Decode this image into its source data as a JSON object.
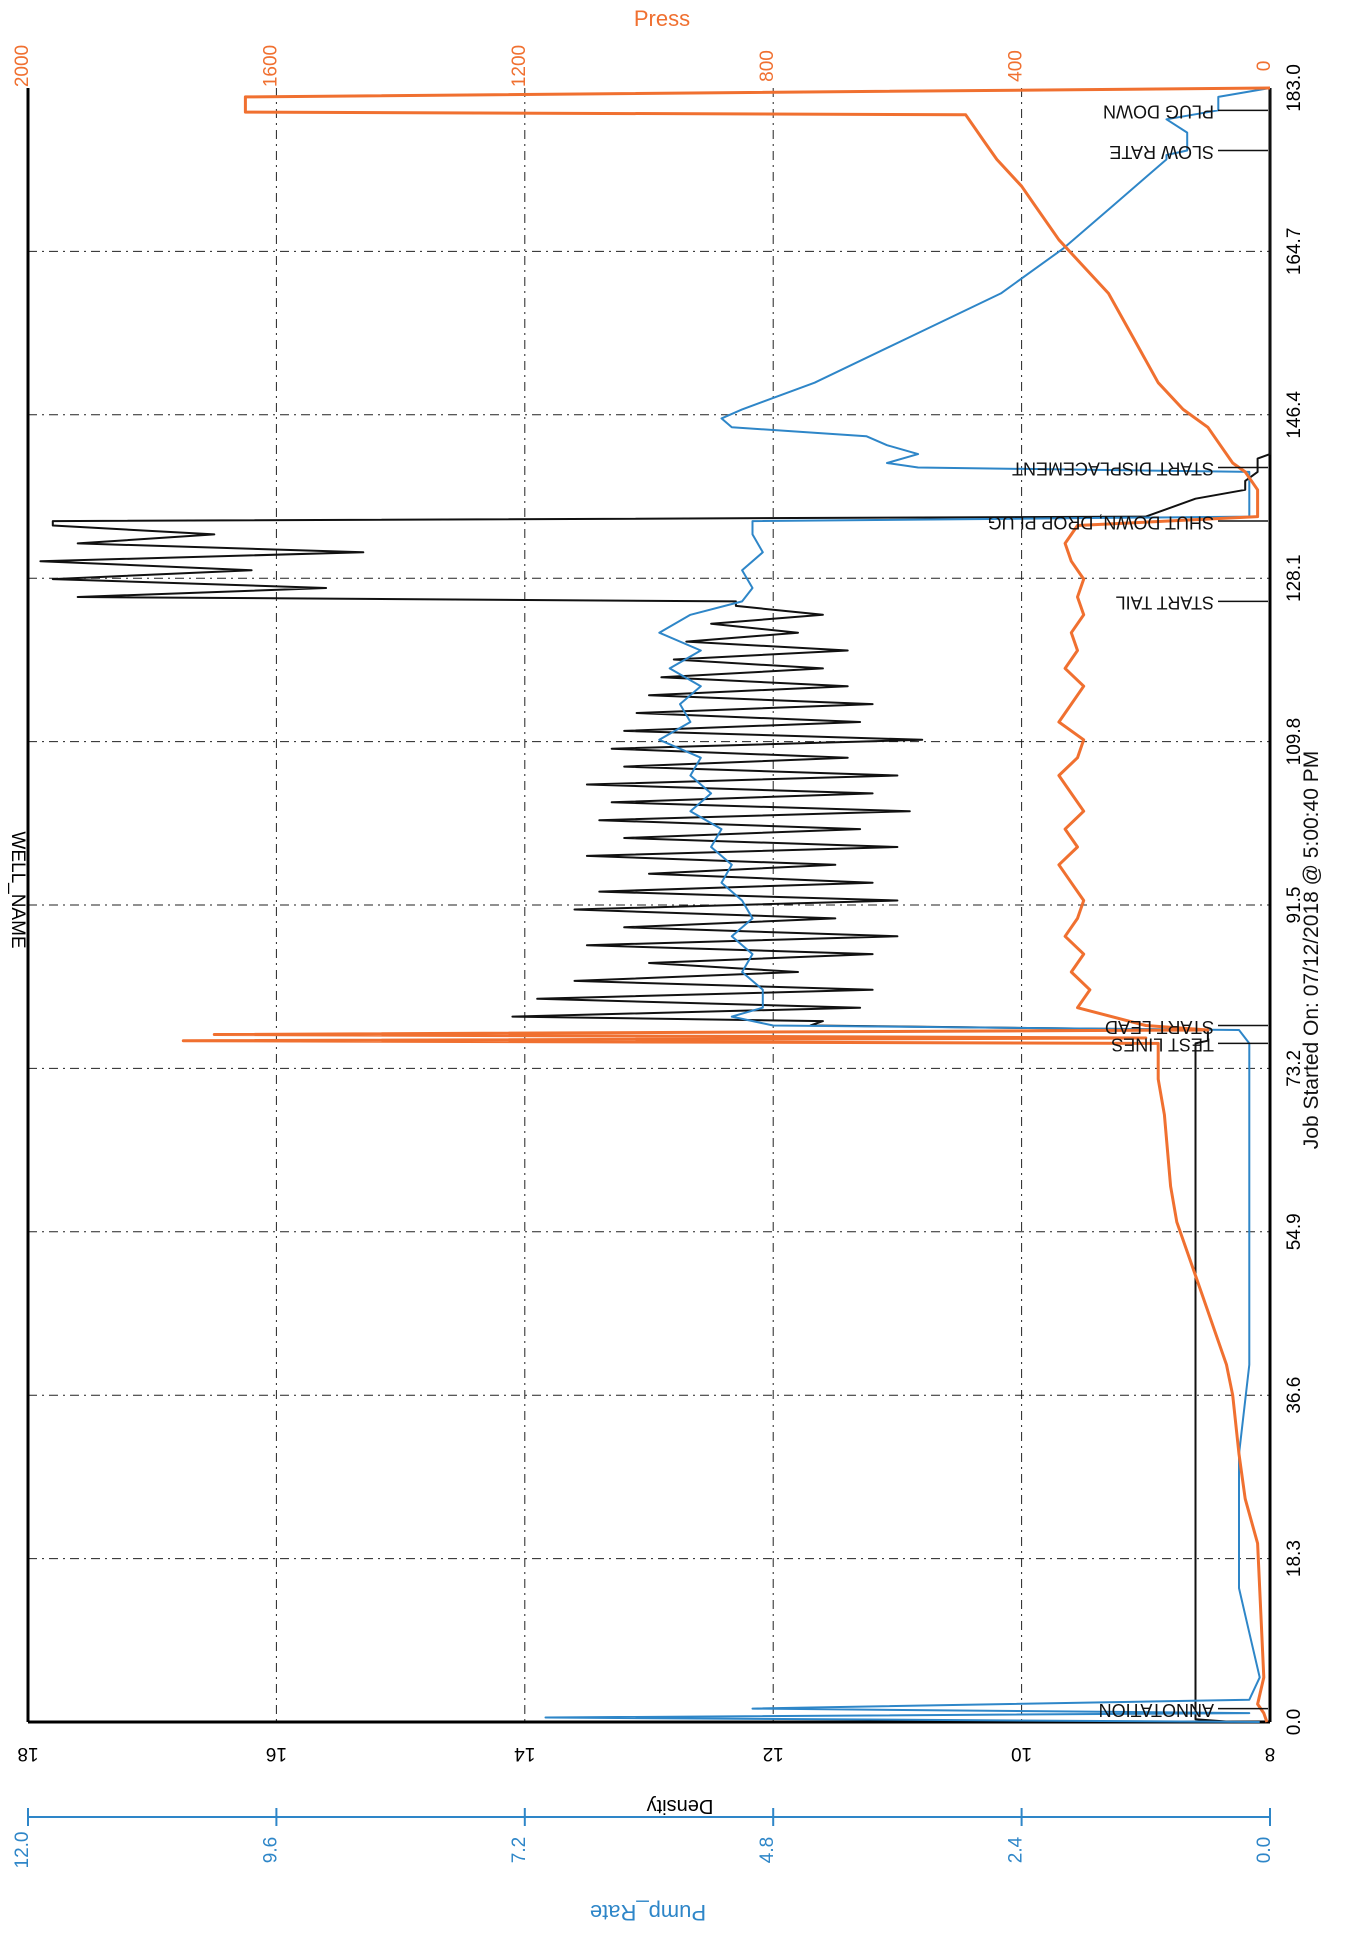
{
  "header": {
    "well_name": "WELL_NAME"
  },
  "chart_data": {
    "type": "line",
    "orientation": "rotated-90-clockwise",
    "footer": "Job Started On: 07/12/2018 @ 5:00:40 PM",
    "x_axis": {
      "ticks": [
        "0.0",
        "18.3",
        "36.6",
        "54.9",
        "73.2",
        "91.5",
        "109.8",
        "128.1",
        "146.4",
        "164.7",
        "183.0"
      ],
      "range": [
        0,
        183
      ]
    },
    "axes": {
      "density": {
        "label": "Density",
        "ticks": [
          "8",
          "10",
          "12",
          "14",
          "16",
          "18"
        ],
        "range": [
          8,
          18
        ],
        "color": "#000000"
      },
      "pump_rate": {
        "label": "Pump_Rate",
        "ticks": [
          "0.0",
          "2.4",
          "4.8",
          "7.2",
          "9.6",
          "12.0"
        ],
        "range": [
          0,
          12
        ],
        "color": "#2e86c8"
      },
      "press": {
        "label": "Press",
        "ticks": [
          "0",
          "400",
          "800",
          "1200",
          "1600",
          "2000"
        ],
        "range": [
          0,
          2000
        ],
        "color": "#f07030"
      }
    },
    "grid": true,
    "annotations": [
      {
        "x": 1.5,
        "label": "ANNOTATION"
      },
      {
        "x": 76.0,
        "label": "TEST LINES"
      },
      {
        "x": 78.0,
        "label": "START LEAD"
      },
      {
        "x": 125.5,
        "label": "START TAIL"
      },
      {
        "x": 134.5,
        "label": "SHUT DOWN, DROP PLUG"
      },
      {
        "x": 140.5,
        "label": "START DISPLACEMENT"
      },
      {
        "x": 176.0,
        "label": "SLOW RATE"
      },
      {
        "x": 180.5,
        "label": "PLUG DOWN"
      }
    ],
    "series": [
      {
        "name": "Density",
        "color": "#111111",
        "axis": "density",
        "x": [
          0,
          0.3,
          1.5,
          3,
          10,
          20,
          40,
          60,
          72,
          76,
          76.3,
          77.5,
          78,
          78.5,
          79,
          80,
          81,
          82,
          83,
          84,
          85,
          86,
          87,
          88,
          89,
          90,
          91,
          92,
          93,
          94,
          95,
          96,
          97,
          98,
          99,
          100,
          101,
          102,
          103,
          104,
          105,
          106,
          107,
          108,
          109,
          110,
          111,
          112,
          113,
          114,
          115,
          116,
          117,
          118,
          119,
          120,
          121,
          122,
          123,
          124,
          125,
          125.5,
          126,
          127,
          128,
          129,
          130,
          131,
          132,
          133,
          134,
          134.5,
          135,
          136,
          137,
          138,
          139,
          140,
          141,
          141.5,
          142,
          146,
          160,
          183
        ],
        "y": [
          8.3,
          8.6,
          8.6,
          8.6,
          8.6,
          8.6,
          8.6,
          8.6,
          8.6,
          8.6,
          8.5,
          8.5,
          11.7,
          11.6,
          14.1,
          11.3,
          13.9,
          11.2,
          13.6,
          11.8,
          13.0,
          11.2,
          13.5,
          11.0,
          13.2,
          11.5,
          13.6,
          11.0,
          13.4,
          11.2,
          13.0,
          11.5,
          13.5,
          11.0,
          13.2,
          11.3,
          13.4,
          10.9,
          13.3,
          11.2,
          13.5,
          11.0,
          13.2,
          11.4,
          13.3,
          10.8,
          13.2,
          11.3,
          13.1,
          11.2,
          13.0,
          11.4,
          12.9,
          11.6,
          12.8,
          11.4,
          12.7,
          11.8,
          12.5,
          11.6,
          12.3,
          12.3,
          17.6,
          15.6,
          17.8,
          16.2,
          17.9,
          15.3,
          17.6,
          16.5,
          17.8,
          17.8,
          9.0,
          8.8,
          8.6,
          8.2,
          8.2,
          8.1,
          8.1,
          8.1,
          8.0,
          8.0,
          8.0,
          8.0
        ]
      },
      {
        "name": "Pump_Rate",
        "color": "#2e86c8",
        "axis": "pump_rate",
        "x": [
          0,
          0.5,
          1.0,
          1.5,
          2.5,
          5,
          10,
          15,
          20,
          30,
          40,
          60,
          73,
          76,
          77.5,
          78,
          79,
          80,
          82,
          84,
          86,
          88,
          90,
          92,
          94,
          96,
          98,
          100,
          102,
          104,
          106,
          108,
          110,
          112,
          114,
          116,
          118,
          120,
          122,
          124,
          125.5,
          127,
          129,
          131,
          133,
          134.5,
          135,
          137,
          140,
          140.5,
          141,
          142,
          143,
          144,
          145,
          146,
          147,
          150,
          155,
          160,
          165,
          170,
          173,
          175,
          175.5,
          176,
          178,
          179.5,
          180.5,
          182,
          183
        ],
        "y": [
          0.1,
          7.0,
          0.2,
          5.0,
          0.2,
          0.1,
          0.2,
          0.3,
          0.3,
          0.3,
          0.2,
          0.2,
          0.2,
          0.2,
          0.3,
          4.8,
          5.2,
          4.9,
          4.9,
          5.1,
          5.0,
          5.2,
          5.0,
          5.1,
          5.3,
          5.2,
          5.4,
          5.3,
          5.6,
          5.4,
          5.6,
          5.5,
          5.9,
          5.6,
          5.7,
          5.5,
          5.8,
          5.5,
          5.9,
          5.6,
          5.1,
          5.0,
          5.1,
          4.9,
          5.0,
          5.0,
          0.2,
          0.2,
          0.2,
          3.4,
          3.7,
          3.4,
          3.7,
          3.9,
          5.2,
          5.3,
          5.1,
          4.4,
          3.5,
          2.6,
          2.0,
          1.5,
          1.2,
          1.0,
          1.0,
          0.8,
          0.8,
          1.0,
          0.5,
          0.5,
          0.0
        ]
      },
      {
        "name": "Press",
        "color": "#f07030",
        "axis": "press",
        "x": [
          0,
          1,
          2,
          5,
          20,
          25,
          30,
          36.6,
          40,
          44,
          48,
          52,
          56,
          60,
          68,
          72,
          76,
          76.3,
          76.6,
          77,
          77.5,
          78,
          80,
          82,
          84,
          86,
          88,
          90,
          92,
          94,
          96,
          98,
          100,
          102,
          104,
          106,
          108,
          110,
          112,
          114,
          116,
          118,
          120,
          122,
          124,
          126,
          128,
          130,
          132,
          134,
          135,
          136,
          138,
          140,
          141,
          143,
          145,
          147,
          150,
          155,
          160,
          163,
          166,
          170,
          172,
          175,
          177,
          180,
          180.3,
          181,
          182,
          183
        ],
        "y": [
          5,
          10,
          20,
          10,
          20,
          40,
          50,
          60,
          70,
          90,
          110,
          130,
          150,
          160,
          170,
          180,
          180,
          1750,
          200,
          1700,
          100,
          200,
          310,
          290,
          320,
          300,
          330,
          310,
          300,
          320,
          340,
          310,
          330,
          300,
          320,
          340,
          310,
          300,
          340,
          320,
          300,
          330,
          310,
          320,
          300,
          310,
          300,
          320,
          330,
          310,
          20,
          20,
          20,
          40,
          60,
          80,
          100,
          140,
          180,
          220,
          260,
          300,
          340,
          380,
          400,
          440,
          460,
          490,
          1650,
          1650,
          1650,
          0
        ]
      }
    ]
  }
}
